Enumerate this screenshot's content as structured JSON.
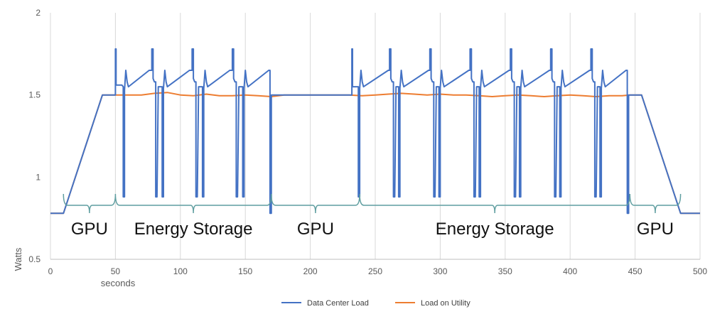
{
  "chart_data": {
    "type": "line",
    "ylabel": "Watts",
    "xlabel": "seconds",
    "xlim": [
      0,
      500
    ],
    "ylim": [
      0.5,
      2
    ],
    "x_ticks": [
      0,
      50,
      100,
      150,
      200,
      250,
      300,
      350,
      400,
      450,
      500
    ],
    "y_ticks": [
      0.5,
      1,
      1.5,
      2
    ],
    "y_tick_labels": [
      "0.5",
      "1",
      "1.5",
      "2"
    ],
    "grid": "vertical",
    "legend_position": "bottom",
    "series": [
      {
        "name": "Data Center Load",
        "color": "#4472c4",
        "x": [
          0,
          10,
          40,
          50,
          50,
          50.5,
          50.5,
          55,
          56,
          56,
          57,
          57,
          58,
          59,
          60,
          76,
          78,
          78,
          79,
          79,
          80,
          81,
          81,
          82,
          83,
          84,
          86,
          86,
          87,
          87,
          88,
          89,
          90,
          107,
          109,
          109,
          110,
          110,
          111,
          112,
          112,
          113,
          114,
          115,
          117,
          117,
          118,
          118,
          119,
          120,
          121,
          138,
          140,
          140,
          141,
          141,
          142,
          143,
          143,
          144,
          145,
          146,
          148,
          148,
          149,
          149,
          150,
          151,
          152,
          168,
          169,
          169,
          170,
          170,
          171,
          182,
          232,
          232,
          232.5,
          232.5,
          236,
          237,
          237,
          238,
          238,
          239,
          240,
          241,
          260,
          261,
          261,
          262,
          262,
          263,
          264,
          264,
          265,
          266,
          267,
          268,
          268,
          269,
          269,
          270,
          271,
          272,
          291,
          292,
          292,
          293,
          293,
          294,
          295,
          295,
          296,
          297,
          298,
          299,
          299,
          300,
          300,
          301,
          302,
          303,
          322,
          323,
          323,
          324,
          324,
          325,
          326,
          326,
          327,
          328,
          329,
          330,
          330,
          331,
          331,
          332,
          333,
          334,
          353,
          354,
          354,
          355,
          355,
          356,
          357,
          357,
          358,
          359,
          360,
          361,
          361,
          362,
          362,
          363,
          364,
          365,
          384,
          385,
          385,
          386,
          386,
          387,
          388,
          388,
          389,
          390,
          391,
          392,
          392,
          393,
          393,
          394,
          395,
          396,
          415,
          416,
          416,
          417,
          417,
          418,
          419,
          419,
          420,
          421,
          422,
          423,
          423,
          424,
          424,
          425,
          426,
          427,
          443,
          444,
          444,
          445,
          445,
          446,
          455,
          485,
          500
        ],
        "y": [
          0.78,
          0.78,
          1.5,
          1.5,
          1.78,
          1.78,
          1.56,
          1.56,
          1.55,
          0.88,
          0.88,
          1.53,
          1.65,
          1.58,
          1.55,
          1.65,
          1.65,
          1.78,
          1.78,
          1.6,
          1.58,
          1.58,
          0.88,
          0.88,
          1.55,
          1.55,
          1.55,
          0.88,
          0.88,
          1.54,
          1.65,
          1.58,
          1.55,
          1.65,
          1.65,
          1.78,
          1.78,
          1.6,
          1.58,
          1.58,
          0.88,
          0.88,
          1.55,
          1.55,
          1.55,
          0.88,
          0.88,
          1.54,
          1.65,
          1.58,
          1.55,
          1.65,
          1.65,
          1.78,
          1.78,
          1.6,
          1.58,
          1.58,
          0.88,
          0.88,
          1.55,
          1.55,
          1.55,
          0.88,
          0.88,
          1.54,
          1.65,
          1.58,
          1.55,
          1.65,
          1.65,
          0.78,
          0.78,
          1.5,
          1.5,
          1.5,
          1.5,
          1.78,
          1.78,
          1.55,
          1.55,
          1.55,
          0.88,
          0.88,
          1.54,
          1.65,
          1.58,
          1.55,
          1.65,
          1.65,
          1.78,
          1.78,
          1.6,
          1.58,
          1.58,
          0.88,
          0.88,
          1.55,
          1.55,
          1.55,
          0.88,
          0.88,
          1.54,
          1.65,
          1.58,
          1.55,
          1.65,
          1.65,
          1.78,
          1.78,
          1.6,
          1.58,
          1.58,
          0.88,
          0.88,
          1.55,
          1.55,
          1.55,
          0.88,
          0.88,
          1.54,
          1.65,
          1.58,
          1.55,
          1.65,
          1.65,
          1.78,
          1.78,
          1.6,
          1.58,
          1.58,
          0.88,
          0.88,
          1.55,
          1.55,
          1.55,
          0.88,
          0.88,
          1.54,
          1.65,
          1.58,
          1.55,
          1.65,
          1.65,
          1.78,
          1.78,
          1.6,
          1.58,
          1.58,
          0.88,
          0.88,
          1.55,
          1.55,
          1.55,
          0.88,
          0.88,
          1.54,
          1.65,
          1.58,
          1.55,
          1.65,
          1.65,
          1.78,
          1.78,
          1.6,
          1.58,
          1.58,
          0.88,
          0.88,
          1.55,
          1.55,
          1.55,
          0.88,
          0.88,
          1.54,
          1.65,
          1.58,
          1.55,
          1.65,
          1.65,
          1.78,
          1.78,
          1.6,
          1.58,
          1.58,
          0.88,
          0.88,
          1.55,
          1.55,
          1.55,
          0.88,
          0.88,
          1.54,
          1.65,
          1.58,
          1.55,
          1.65,
          1.65,
          0.78,
          0.78,
          1.5,
          1.5,
          1.5,
          0.78,
          0.78
        ]
      },
      {
        "name": "Load on Utility",
        "color": "#ed7d31",
        "x": [
          0,
          10,
          40,
          60,
          70,
          80,
          90,
          100,
          110,
          120,
          130,
          140,
          150,
          160,
          170,
          180,
          230,
          240,
          250,
          260,
          270,
          280,
          290,
          300,
          310,
          320,
          330,
          340,
          350,
          360,
          370,
          380,
          390,
          400,
          410,
          420,
          430,
          440,
          446,
          455,
          485,
          500
        ],
        "y": [
          0.78,
          0.78,
          1.5,
          1.5,
          1.5,
          1.51,
          1.515,
          1.5,
          1.495,
          1.505,
          1.495,
          1.495,
          1.5,
          1.495,
          1.49,
          1.5,
          1.5,
          1.495,
          1.5,
          1.505,
          1.51,
          1.505,
          1.5,
          1.505,
          1.5,
          1.5,
          1.495,
          1.49,
          1.495,
          1.5,
          1.495,
          1.49,
          1.495,
          1.5,
          1.495,
          1.49,
          1.495,
          1.495,
          1.5,
          1.5,
          0.78,
          0.78
        ]
      }
    ]
  },
  "annotations": {
    "brace_color": "#5f9ea0",
    "regions": [
      {
        "label": "GPU",
        "x_start": 10,
        "x_end": 50
      },
      {
        "label": "Energy Storage",
        "x_start": 50,
        "x_end": 170
      },
      {
        "label": "GPU",
        "x_start": 170,
        "x_end": 238
      },
      {
        "label": "Energy Storage",
        "x_start": 238,
        "x_end": 446
      },
      {
        "label": "GPU",
        "x_start": 446,
        "x_end": 485
      }
    ]
  }
}
